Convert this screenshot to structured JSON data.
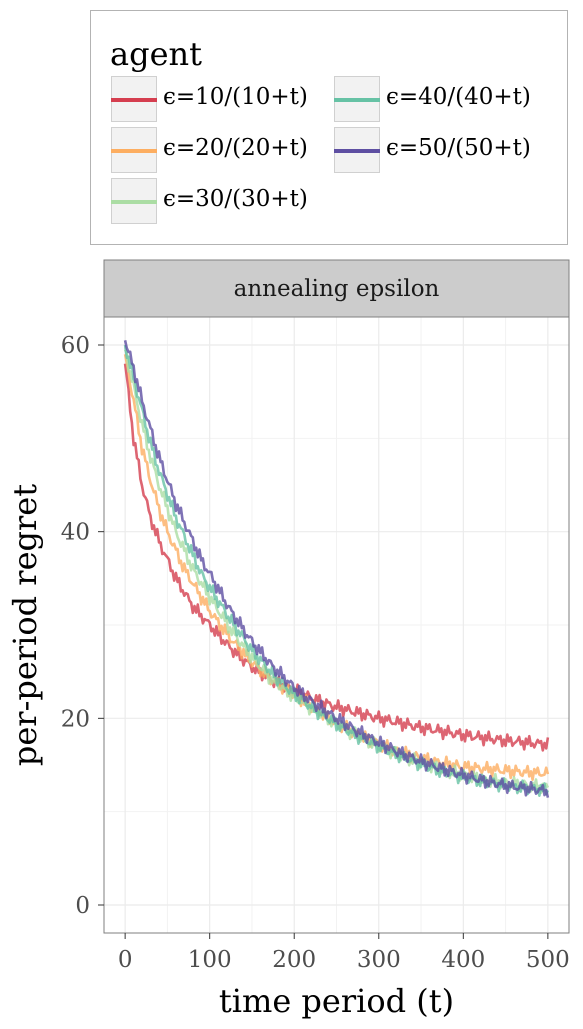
{
  "legend": {
    "title": "agent",
    "items": [
      {
        "label": "ϵ=10/(10+t)",
        "color": "#d53e4f"
      },
      {
        "label": "ϵ=20/(20+t)",
        "color": "#fdae61"
      },
      {
        "label": "ϵ=30/(30+t)",
        "color": "#abdda4"
      },
      {
        "label": "ϵ=40/(40+t)",
        "color": "#66c2a5"
      },
      {
        "label": "ϵ=50/(50+t)",
        "color": "#5e4fa2"
      }
    ]
  },
  "chart_data": {
    "type": "line",
    "title": "",
    "facet_label": "annealing epsilon",
    "xlabel": "time period (t)",
    "ylabel": "per-period regret",
    "xlim": [
      -25,
      525
    ],
    "ylim": [
      -3,
      63
    ],
    "xticks": [
      0,
      100,
      200,
      300,
      400,
      500
    ],
    "yticks": [
      0,
      20,
      40,
      60
    ],
    "grid": true,
    "legend_position": "top",
    "x": [
      0,
      10,
      20,
      30,
      40,
      50,
      60,
      70,
      80,
      90,
      100,
      125,
      150,
      175,
      200,
      225,
      250,
      275,
      300,
      325,
      350,
      375,
      400,
      425,
      450,
      475,
      500
    ],
    "series": [
      {
        "name": "ϵ=10/(10+t)",
        "color": "#d53e4f",
        "values": [
          58,
          50,
          45,
          41.5,
          39,
          37,
          35,
          33.5,
          32,
          31,
          30,
          27.5,
          25.5,
          24,
          23,
          22,
          21.2,
          20.6,
          20,
          19.5,
          19,
          18.6,
          18.2,
          17.9,
          17.6,
          17.4,
          17.2
        ]
      },
      {
        "name": "ϵ=20/(20+t)",
        "color": "#fdae61",
        "values": [
          59,
          54,
          49,
          45.5,
          42.5,
          40,
          38,
          36,
          34.5,
          33,
          31.5,
          28.5,
          26,
          24,
          22.5,
          21,
          19.5,
          18.3,
          17.2,
          16.4,
          15.7,
          15.2,
          14.8,
          14.6,
          14.4,
          14.2,
          14.1
        ]
      },
      {
        "name": "ϵ=30/(30+t)",
        "color": "#abdda4",
        "values": [
          59.5,
          55.5,
          51.5,
          48,
          45,
          42.5,
          40,
          38,
          36,
          34.5,
          33,
          29.5,
          26.5,
          24,
          22.3,
          20.8,
          19.4,
          18.1,
          17,
          16,
          15.2,
          14.5,
          13.9,
          13.4,
          13.1,
          12.8,
          12.6
        ]
      },
      {
        "name": "ϵ=40/(40+t)",
        "color": "#66c2a5",
        "values": [
          60,
          56.5,
          53,
          49.5,
          46.5,
          44,
          41.5,
          39.5,
          37.5,
          35.5,
          34,
          30.5,
          27.3,
          24.7,
          22.6,
          20.9,
          19.4,
          18.1,
          17,
          16,
          15.1,
          14.3,
          13.7,
          13.2,
          12.8,
          12.5,
          12.3
        ]
      },
      {
        "name": "ϵ=50/(50+t)",
        "color": "#5e4fa2",
        "values": [
          60.5,
          57.5,
          54,
          51,
          48,
          45.5,
          43,
          41,
          39,
          37,
          35.5,
          31.5,
          28.2,
          25.5,
          23.3,
          21.5,
          20,
          18.6,
          17.4,
          16.3,
          15.4,
          14.6,
          13.9,
          13.3,
          12.8,
          12.5,
          12.2
        ]
      }
    ]
  }
}
